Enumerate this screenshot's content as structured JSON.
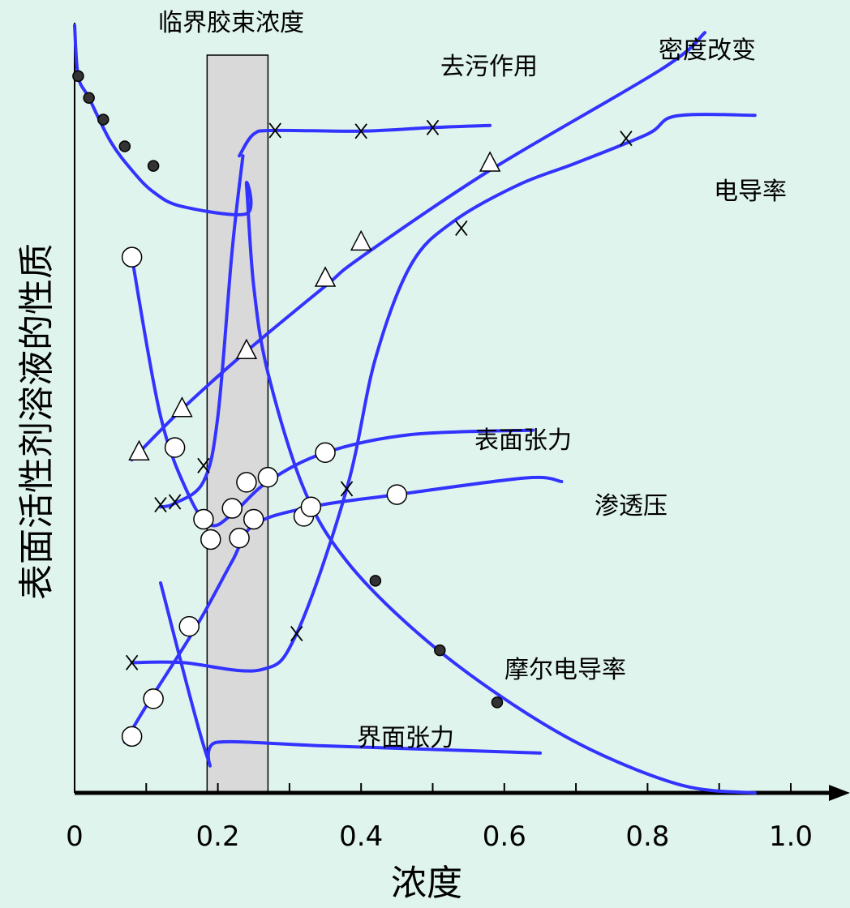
{
  "chart_data": {
    "type": "line",
    "title": "",
    "xlabel": "浓度",
    "ylabel": "表面活性剂溶液的性质",
    "xlim": [
      0,
      1.0
    ],
    "x_ticks": [
      0,
      0.2,
      0.4,
      0.6,
      0.8,
      1.0
    ],
    "x_tick_labels": [
      "0",
      "0.2",
      "0.4",
      "0.6",
      "0.8",
      "1.0"
    ],
    "y_ticks": [],
    "grid": false,
    "legend": "none",
    "band": {
      "label": "临界胶束浓度",
      "x_from": 0.185,
      "x_to": 0.27,
      "color": "#d9d9d9"
    },
    "series": [
      {
        "name": "去污作用",
        "marker": "x",
        "points": [
          [
            0.23,
            0.88
          ],
          [
            0.25,
            0.91
          ],
          [
            0.28,
            0.915
          ],
          [
            0.4,
            0.914
          ],
          [
            0.5,
            0.919
          ],
          [
            0.58,
            0.922
          ]
        ],
        "marker_points": [
          [
            0.28,
            0.915
          ],
          [
            0.4,
            0.914
          ],
          [
            0.5,
            0.919
          ]
        ]
      },
      {
        "name": "密度改变",
        "marker": "triangle",
        "points": [
          [
            0.08,
            0.46
          ],
          [
            0.15,
            0.53
          ],
          [
            0.24,
            0.61
          ],
          [
            0.35,
            0.7
          ],
          [
            0.4,
            0.74
          ],
          [
            0.58,
            0.86
          ],
          [
            0.82,
            1.0
          ],
          [
            0.88,
            1.05
          ]
        ],
        "marker_points": [
          [
            0.09,
            0.47
          ],
          [
            0.15,
            0.53
          ],
          [
            0.24,
            0.61
          ],
          [
            0.35,
            0.71
          ],
          [
            0.4,
            0.76
          ],
          [
            0.58,
            0.869
          ]
        ]
      },
      {
        "name": "电导率",
        "marker": "x",
        "points": [
          [
            0.08,
            0.18
          ],
          [
            0.15,
            0.18
          ],
          [
            0.26,
            0.17
          ],
          [
            0.31,
            0.22
          ],
          [
            0.38,
            0.42
          ],
          [
            0.42,
            0.6
          ],
          [
            0.47,
            0.73
          ],
          [
            0.53,
            0.79
          ],
          [
            0.62,
            0.84
          ],
          [
            0.7,
            0.87
          ],
          [
            0.8,
            0.91
          ],
          [
            0.84,
            0.935
          ],
          [
            0.95,
            0.936
          ]
        ],
        "marker_points": [
          [
            0.08,
            0.18
          ],
          [
            0.31,
            0.22
          ],
          [
            0.38,
            0.42
          ],
          [
            0.54,
            0.78
          ],
          [
            0.77,
            0.904
          ]
        ]
      },
      {
        "name": "表面张力",
        "marker": "circle",
        "points": [
          [
            0.08,
            0.74
          ],
          [
            0.12,
            0.52
          ],
          [
            0.16,
            0.41
          ],
          [
            0.19,
            0.37
          ],
          [
            0.22,
            0.385
          ],
          [
            0.27,
            0.43
          ],
          [
            0.35,
            0.47
          ],
          [
            0.47,
            0.495
          ],
          [
            0.64,
            0.501
          ]
        ],
        "marker_points": [
          [
            0.08,
            0.74
          ],
          [
            0.14,
            0.477
          ],
          [
            0.18,
            0.378
          ],
          [
            0.22,
            0.393
          ],
          [
            0.24,
            0.429
          ],
          [
            0.27,
            0.436
          ],
          [
            0.35,
            0.47
          ]
        ]
      },
      {
        "name": "渗透压",
        "marker": "circle",
        "points": [
          [
            0.07,
            0.07
          ],
          [
            0.1,
            0.12
          ],
          [
            0.17,
            0.23
          ],
          [
            0.22,
            0.32
          ],
          [
            0.25,
            0.37
          ],
          [
            0.33,
            0.395
          ],
          [
            0.45,
            0.412
          ],
          [
            0.63,
            0.435
          ],
          [
            0.68,
            0.43
          ]
        ],
        "marker_points": [
          [
            0.08,
            0.078
          ],
          [
            0.11,
            0.13
          ],
          [
            0.16,
            0.23
          ],
          [
            0.19,
            0.35
          ],
          [
            0.23,
            0.352
          ],
          [
            0.25,
            0.378
          ],
          [
            0.32,
            0.382
          ],
          [
            0.33,
            0.395
          ],
          [
            0.45,
            0.412
          ]
        ]
      },
      {
        "name": "界面张力",
        "marker": "none",
        "points": [
          [
            0.12,
            0.29
          ],
          [
            0.185,
            0.05
          ],
          [
            0.2,
            0.07
          ],
          [
            0.35,
            0.065
          ],
          [
            0.65,
            0.055
          ]
        ],
        "marker_points": []
      },
      {
        "name": "摩尔电导率",
        "marker": "dot",
        "points": [
          [
            0.0,
            1.06
          ],
          [
            0.005,
            0.99
          ],
          [
            0.02,
            0.96
          ],
          [
            0.05,
            0.9
          ],
          [
            0.08,
            0.86
          ],
          [
            0.11,
            0.83
          ],
          [
            0.15,
            0.81
          ],
          [
            0.24,
            0.8
          ],
          [
            0.24,
            0.84
          ],
          [
            0.25,
            0.7
          ],
          [
            0.27,
            0.58
          ],
          [
            0.32,
            0.42
          ],
          [
            0.38,
            0.32
          ],
          [
            0.48,
            0.22
          ],
          [
            0.6,
            0.13
          ],
          [
            0.72,
            0.06
          ],
          [
            0.85,
            0.01
          ],
          [
            0.95,
            0.0
          ]
        ],
        "marker_points": [
          [
            0.005,
            0.99
          ],
          [
            0.02,
            0.96
          ],
          [
            0.04,
            0.93
          ],
          [
            0.07,
            0.893
          ],
          [
            0.11,
            0.866
          ],
          [
            0.42,
            0.293
          ],
          [
            0.51,
            0.197
          ],
          [
            0.59,
            0.125
          ]
        ]
      },
      {
        "name": "",
        "marker": "x",
        "points": [
          [
            0.12,
            0.395
          ],
          [
            0.14,
            0.4
          ],
          [
            0.18,
            0.43
          ],
          [
            0.2,
            0.52
          ],
          [
            0.22,
            0.75
          ],
          [
            0.235,
            0.88
          ]
        ],
        "marker_points": [
          [
            0.12,
            0.398
          ],
          [
            0.14,
            0.402
          ],
          [
            0.18,
            0.452
          ]
        ]
      }
    ]
  }
}
